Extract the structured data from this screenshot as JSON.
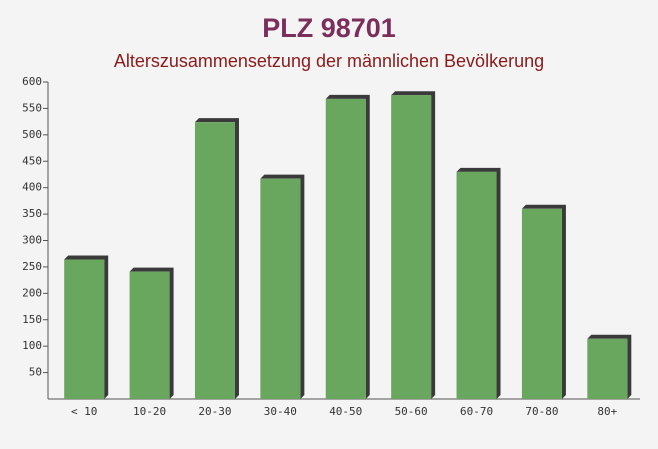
{
  "chart_data": {
    "type": "bar",
    "title": "PLZ 98701",
    "subtitle": "Alterszusammensetzung der männlichen Bevölkerung",
    "categories": [
      "< 10",
      "10-20",
      "20-30",
      "30-40",
      "40-50",
      "50-60",
      "60-70",
      "70-80",
      "80+"
    ],
    "values": [
      264,
      241,
      524,
      417,
      568,
      575,
      430,
      360,
      114
    ],
    "color": "#6aa75e",
    "ylim": [
      0,
      600
    ],
    "yticks": [
      50,
      100,
      150,
      200,
      250,
      300,
      350,
      400,
      450,
      500,
      550,
      600
    ],
    "grid": false
  }
}
